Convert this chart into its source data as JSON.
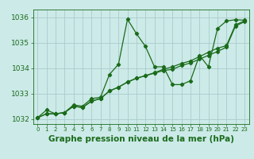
{
  "xlabel": "Graphe pression niveau de la mer (hPa)",
  "ylim": [
    1031.8,
    1036.3
  ],
  "xlim": [
    -0.5,
    23.5
  ],
  "bg_color": "#cceae8",
  "line_color": "#1a6b1a",
  "grid_color": "#aacccc",
  "series": [
    {
      "x": [
        0,
        1,
        2,
        3,
        4,
        5,
        6,
        7,
        8,
        9,
        10,
        11,
        12,
        13,
        14,
        15,
        16,
        17,
        18,
        19,
        20,
        21,
        22,
        23
      ],
      "y": [
        1032.05,
        1032.35,
        1032.2,
        1032.25,
        1032.55,
        1032.5,
        1032.8,
        1032.85,
        1033.75,
        1034.15,
        1035.92,
        1035.35,
        1034.85,
        1034.05,
        1034.05,
        1033.35,
        1033.35,
        1033.5,
        1034.5,
        1034.05,
        1035.55,
        1035.85,
        1035.9,
        1035.88
      ]
    },
    {
      "x": [
        0,
        1,
        2,
        3,
        4,
        5,
        6,
        7,
        8,
        9,
        10,
        11,
        12,
        13,
        14,
        15,
        16,
        17,
        18,
        19,
        20,
        21,
        22,
        23
      ],
      "y": [
        1032.05,
        1032.2,
        1032.2,
        1032.25,
        1032.5,
        1032.45,
        1032.7,
        1032.8,
        1033.1,
        1033.25,
        1033.45,
        1033.6,
        1033.7,
        1033.8,
        1033.9,
        1033.95,
        1034.1,
        1034.2,
        1034.35,
        1034.5,
        1034.65,
        1034.82,
        1035.65,
        1035.82
      ]
    },
    {
      "x": [
        0,
        1,
        2,
        3,
        4,
        5,
        6,
        7,
        8,
        9,
        10,
        11,
        12,
        13,
        14,
        15,
        16,
        17,
        18,
        19,
        20,
        21,
        22,
        23
      ],
      "y": [
        1032.05,
        1032.2,
        1032.2,
        1032.25,
        1032.5,
        1032.45,
        1032.7,
        1032.8,
        1033.1,
        1033.25,
        1033.45,
        1033.6,
        1033.7,
        1033.82,
        1033.95,
        1034.05,
        1034.18,
        1034.28,
        1034.45,
        1034.62,
        1034.78,
        1034.88,
        1035.7,
        1035.85
      ]
    }
  ],
  "xticks": [
    0,
    1,
    2,
    3,
    4,
    5,
    6,
    7,
    8,
    9,
    10,
    11,
    12,
    13,
    14,
    15,
    16,
    17,
    18,
    19,
    20,
    21,
    22,
    23
  ],
  "yticks": [
    1032,
    1033,
    1034,
    1035,
    1036
  ],
  "tick_fontsize": 6.5,
  "label_fontsize": 7.5
}
